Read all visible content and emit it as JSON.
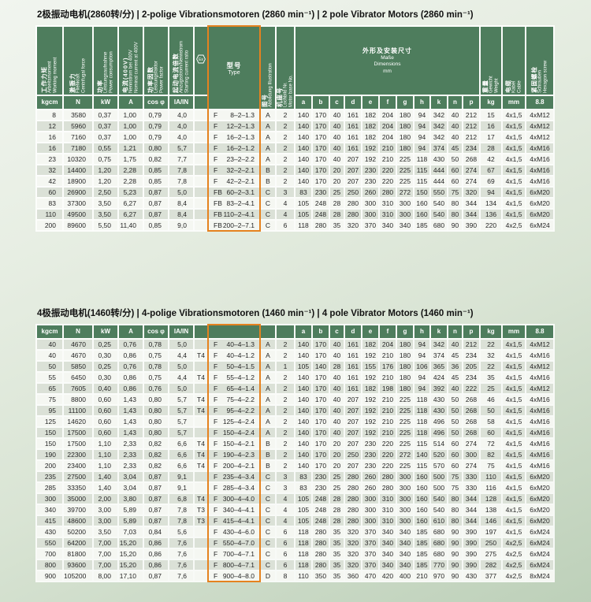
{
  "colors": {
    "header_green": "#4e7d5d",
    "highlight_orange": "#e5821f",
    "row_shaded": "#dbe1d7",
    "row_plain": "#f5f7f2"
  },
  "columns": {
    "working_moment": {
      "zh": "工作力矩",
      "de": "Arbeitsmoment",
      "en": "Working moment",
      "unit": "kgcm"
    },
    "centrifugal_force": {
      "zh": "激振力",
      "de": "Fliehkraft",
      "en": "Centrifugal force",
      "unit": "N"
    },
    "power": {
      "zh": "功率",
      "de": "Leistungsaufnahme",
      "en": "Power consumption",
      "unit": "kW"
    },
    "current": {
      "zh": "电流(400V)",
      "de": "Nennstrom bei 400V",
      "en": "Nominal current at 400V",
      "unit": "A"
    },
    "power_factor": {
      "zh": "功率因数",
      "de": "Leistungsfaktor",
      "en": "Power factor",
      "unit": "cos φ"
    },
    "starting_ratio": {
      "zh": "起动电流倍数",
      "de": "Anzugsstrom/Nennstrom",
      "en": "Starting current ratio",
      "unit": "IA/IN"
    },
    "temp_class": {
      "icon": "hexagon-ex-icon",
      "unit": ""
    },
    "type": {
      "zh": "型号",
      "en": "Type"
    },
    "illustration": {
      "zh": "图号",
      "de_en": "Abbildung  Illustration"
    },
    "base": {
      "zh": "机座号",
      "de": "Lochbild Nr.",
      "en": "Motor base No."
    },
    "dims": {
      "zh": "外形及安装尺寸",
      "de": "Maße",
      "en": "Dimensions",
      "unit": "mm",
      "letters": [
        "a",
        "b",
        "c",
        "d",
        "e",
        "f",
        "g",
        "h",
        "k",
        "n",
        "p"
      ]
    },
    "weight": {
      "zh": "重量",
      "de": "Gewicht",
      "en": "Weight",
      "unit": "kg"
    },
    "cable": {
      "zh": "电缆",
      "de": "Kabel",
      "en": "Cable",
      "unit": "mm"
    },
    "screws": {
      "zh": "紧固螺栓",
      "de": "Schrauben",
      "en": "Hexagon screw",
      "unit": "8.8"
    }
  },
  "tables": [
    {
      "title": "2极振动电机(2860转/分) | 2-polige Vibrationsmotoren (2860 min⁻¹) | 2 pole Vibrator Motors (2860 min⁻¹)",
      "rows": [
        [
          "8",
          "3580",
          "0,37",
          "1,00",
          "0,79",
          "4,0",
          "",
          "F",
          "8–2–1.3",
          "A",
          "2",
          "140",
          "170",
          "40",
          "161",
          "182",
          "204",
          "180",
          "94",
          "342",
          "40",
          "212",
          "15",
          "4x1,5",
          "4xM12"
        ],
        [
          "12",
          "5960",
          "0,37",
          "1,00",
          "0,79",
          "4,0",
          "",
          "F",
          "12–2–1.3",
          "A",
          "2",
          "140",
          "170",
          "40",
          "161",
          "182",
          "204",
          "180",
          "94",
          "342",
          "40",
          "212",
          "16",
          "4x1,5",
          "4xM12"
        ],
        [
          "16",
          "7160",
          "0,37",
          "1,00",
          "0,79",
          "4,0",
          "",
          "F",
          "16–2–1.3",
          "A",
          "2",
          "140",
          "170",
          "40",
          "161",
          "182",
          "204",
          "180",
          "94",
          "342",
          "40",
          "212",
          "17",
          "4x1,5",
          "4xM12"
        ],
        [
          "16",
          "7180",
          "0,55",
          "1,21",
          "0,80",
          "5,7",
          "",
          "F",
          "16–2–1.2",
          "A",
          "2",
          "140",
          "170",
          "40",
          "161",
          "192",
          "210",
          "180",
          "94",
          "374",
          "45",
          "234",
          "28",
          "4x1,5",
          "4xM16"
        ],
        [
          "23",
          "10320",
          "0,75",
          "1,75",
          "0,82",
          "7,7",
          "",
          "F",
          "23–2–2.2",
          "A",
          "2",
          "140",
          "170",
          "40",
          "207",
          "192",
          "210",
          "225",
          "118",
          "430",
          "50",
          "268",
          "42",
          "4x1,5",
          "4xM16"
        ],
        [
          "32",
          "14400",
          "1,20",
          "2,28",
          "0,85",
          "7,8",
          "",
          "F",
          "32–2–2.1",
          "B",
          "2",
          "140",
          "170",
          "20",
          "207",
          "230",
          "220",
          "225",
          "115",
          "444",
          "60",
          "274",
          "67",
          "4x1,5",
          "4xM16"
        ],
        [
          "42",
          "18900",
          "1,20",
          "2,28",
          "0,85",
          "7,8",
          "",
          "F",
          "42–2–2.1",
          "B",
          "2",
          "140",
          "170",
          "20",
          "207",
          "230",
          "220",
          "225",
          "115",
          "444",
          "60",
          "274",
          "69",
          "4x1,5",
          "4xM16"
        ],
        [
          "60",
          "26900",
          "2,50",
          "5,23",
          "0,87",
          "5,0",
          "",
          "FB",
          "60–2–3.1",
          "C",
          "3",
          "83",
          "230",
          "25",
          "250",
          "260",
          "280",
          "272",
          "150",
          "550",
          "75",
          "320",
          "94",
          "4x1,5",
          "6xM20"
        ],
        [
          "83",
          "37300",
          "3,50",
          "6,27",
          "0,87",
          "8,4",
          "",
          "FB",
          "83–2–4.1",
          "C",
          "4",
          "105",
          "248",
          "28",
          "280",
          "300",
          "310",
          "300",
          "160",
          "540",
          "80",
          "344",
          "134",
          "4x1,5",
          "6xM20"
        ],
        [
          "110",
          "49500",
          "3,50",
          "6,27",
          "0,87",
          "8,4",
          "",
          "FB",
          "110–2–4.1",
          "C",
          "4",
          "105",
          "248",
          "28",
          "280",
          "300",
          "310",
          "300",
          "160",
          "540",
          "80",
          "344",
          "136",
          "4x1,5",
          "6xM20"
        ],
        [
          "200",
          "89600",
          "5,50",
          "11,40",
          "0,85",
          "9,0",
          "",
          "FB",
          "200–2–7.1",
          "C",
          "6",
          "118",
          "280",
          "35",
          "320",
          "370",
          "340",
          "340",
          "185",
          "680",
          "90",
          "390",
          "220",
          "4x2,5",
          "6xM24"
        ]
      ]
    },
    {
      "title": "4极振动电机(1460转/分) | 4-polige Vibrationsmotoren (1460 min⁻¹) | 4 pole Vibrator Motors (1460 min⁻¹)",
      "rows": [
        [
          "40",
          "4670",
          "0,25",
          "0,76",
          "0,78",
          "5,0",
          "",
          "F",
          "40–4–1.3",
          "A",
          "2",
          "140",
          "170",
          "40",
          "161",
          "182",
          "204",
          "180",
          "94",
          "342",
          "40",
          "212",
          "22",
          "4x1,5",
          "4xM12"
        ],
        [
          "40",
          "4670",
          "0,30",
          "0,86",
          "0,75",
          "4,4",
          "T4",
          "F",
          "40–4–1.2",
          "A",
          "2",
          "140",
          "170",
          "40",
          "161",
          "192",
          "210",
          "180",
          "94",
          "374",
          "45",
          "234",
          "32",
          "4x1,5",
          "4xM16"
        ],
        [
          "50",
          "5850",
          "0,25",
          "0,76",
          "0,78",
          "5,0",
          "",
          "F",
          "50–4–1.5",
          "A",
          "1",
          "105",
          "140",
          "28",
          "161",
          "155",
          "176",
          "180",
          "106",
          "365",
          "36",
          "205",
          "22",
          "4x1,5",
          "4xM12"
        ],
        [
          "55",
          "6450",
          "0,30",
          "0,86",
          "0,75",
          "4,4",
          "T4",
          "F",
          "55–4–1.2",
          "A",
          "2",
          "140",
          "170",
          "40",
          "161",
          "192",
          "210",
          "180",
          "94",
          "424",
          "45",
          "234",
          "35",
          "4x1,5",
          "4xM16"
        ],
        [
          "65",
          "7605",
          "0,40",
          "0,86",
          "0,76",
          "5,0",
          "",
          "F",
          "65–4–1.4",
          "A",
          "2",
          "140",
          "170",
          "40",
          "161",
          "182",
          "198",
          "180",
          "94",
          "392",
          "40",
          "222",
          "25",
          "4x1,5",
          "4xM12"
        ],
        [
          "75",
          "8800",
          "0,60",
          "1,43",
          "0,80",
          "5,7",
          "T4",
          "F",
          "75–4–2.2",
          "A",
          "2",
          "140",
          "170",
          "40",
          "207",
          "192",
          "210",
          "225",
          "118",
          "430",
          "50",
          "268",
          "46",
          "4x1,5",
          "4xM16"
        ],
        [
          "95",
          "11100",
          "0,60",
          "1,43",
          "0,80",
          "5,7",
          "T4",
          "F",
          "95–4–2.2",
          "A",
          "2",
          "140",
          "170",
          "40",
          "207",
          "192",
          "210",
          "225",
          "118",
          "430",
          "50",
          "268",
          "50",
          "4x1,5",
          "4xM16"
        ],
        [
          "125",
          "14620",
          "0,60",
          "1,43",
          "0,80",
          "5,7",
          "",
          "F",
          "125–4–2.4",
          "A",
          "2",
          "140",
          "170",
          "40",
          "207",
          "192",
          "210",
          "225",
          "118",
          "496",
          "50",
          "268",
          "58",
          "4x1,5",
          "4xM16"
        ],
        [
          "150",
          "17500",
          "0,60",
          "1,43",
          "0,80",
          "5,7",
          "",
          "F",
          "150–4–2.4",
          "A",
          "2",
          "140",
          "170",
          "40",
          "207",
          "192",
          "210",
          "225",
          "118",
          "496",
          "50",
          "268",
          "60",
          "4x1,5",
          "4xM16"
        ],
        [
          "150",
          "17500",
          "1,10",
          "2,33",
          "0,82",
          "6,6",
          "T4",
          "F",
          "150–4–2.1",
          "B",
          "2",
          "140",
          "170",
          "20",
          "207",
          "230",
          "220",
          "225",
          "115",
          "514",
          "60",
          "274",
          "72",
          "4x1,5",
          "4xM16"
        ],
        [
          "190",
          "22300",
          "1,10",
          "2,33",
          "0,82",
          "6,6",
          "T4",
          "F",
          "190–4–2.3",
          "B",
          "2",
          "140",
          "170",
          "20",
          "250",
          "230",
          "220",
          "272",
          "140",
          "520",
          "60",
          "300",
          "82",
          "4x1,5",
          "4xM16"
        ],
        [
          "200",
          "23400",
          "1,10",
          "2,33",
          "0,82",
          "6,6",
          "T4",
          "F",
          "200–4–2.1",
          "B",
          "2",
          "140",
          "170",
          "20",
          "207",
          "230",
          "220",
          "225",
          "115",
          "570",
          "60",
          "274",
          "75",
          "4x1,5",
          "4xM16"
        ],
        [
          "235",
          "27500",
          "1,40",
          "3,04",
          "0,87",
          "9,1",
          "",
          "F",
          "235–4–3.4",
          "C",
          "3",
          "83",
          "230",
          "25",
          "280",
          "260",
          "280",
          "300",
          "160",
          "500",
          "75",
          "330",
          "110",
          "4x1,5",
          "6xM20"
        ],
        [
          "285",
          "33350",
          "1,40",
          "3,04",
          "0,87",
          "9,1",
          "",
          "F",
          "285–4–3.4",
          "C",
          "3",
          "83",
          "230",
          "25",
          "280",
          "260",
          "280",
          "300",
          "160",
          "500",
          "75",
          "330",
          "116",
          "4x1,5",
          "6xM20"
        ],
        [
          "300",
          "35000",
          "2,00",
          "3,80",
          "0,87",
          "6,8",
          "T4",
          "F",
          "300–4–4.0",
          "C",
          "4",
          "105",
          "248",
          "28",
          "280",
          "300",
          "310",
          "300",
          "160",
          "540",
          "80",
          "344",
          "128",
          "4x1,5",
          "6xM20"
        ],
        [
          "340",
          "39700",
          "3,00",
          "5,89",
          "0,87",
          "7,8",
          "T3",
          "F",
          "340–4–4.1",
          "C",
          "4",
          "105",
          "248",
          "28",
          "280",
          "300",
          "310",
          "300",
          "160",
          "540",
          "80",
          "344",
          "138",
          "4x1,5",
          "6xM20"
        ],
        [
          "415",
          "48600",
          "3,00",
          "5,89",
          "0,87",
          "7,8",
          "T3",
          "F",
          "415–4–4.1",
          "C",
          "4",
          "105",
          "248",
          "28",
          "280",
          "300",
          "310",
          "300",
          "160",
          "610",
          "80",
          "344",
          "146",
          "4x1,5",
          "6xM20"
        ],
        [
          "430",
          "50200",
          "3,50",
          "7,03",
          "0,84",
          "5,6",
          "",
          "F",
          "430–4–6.0",
          "C",
          "6",
          "118",
          "280",
          "35",
          "320",
          "370",
          "340",
          "340",
          "185",
          "680",
          "90",
          "390",
          "197",
          "4x1,5",
          "6xM24"
        ],
        [
          "550",
          "64200",
          "7,00",
          "15,20",
          "0,86",
          "7,6",
          "",
          "F",
          "550–4–7.0",
          "C",
          "6",
          "118",
          "280",
          "35",
          "320",
          "370",
          "340",
          "340",
          "185",
          "680",
          "90",
          "390",
          "250",
          "4x2,5",
          "6xM24"
        ],
        [
          "700",
          "81800",
          "7,00",
          "15,20",
          "0,86",
          "7,6",
          "",
          "F",
          "700–4–7.1",
          "C",
          "6",
          "118",
          "280",
          "35",
          "320",
          "370",
          "340",
          "340",
          "185",
          "680",
          "90",
          "390",
          "275",
          "4x2,5",
          "6xM24"
        ],
        [
          "800",
          "93600",
          "7,00",
          "15,20",
          "0,86",
          "7,6",
          "",
          "F",
          "800–4–7.1",
          "C",
          "6",
          "118",
          "280",
          "35",
          "320",
          "370",
          "340",
          "340",
          "185",
          "770",
          "90",
          "390",
          "282",
          "4x2,5",
          "6xM24"
        ],
        [
          "900",
          "105200",
          "8,00",
          "17,10",
          "0,87",
          "7,6",
          "",
          "F",
          "900–4–8.0",
          "D",
          "8",
          "110",
          "350",
          "35",
          "360",
          "470",
          "420",
          "400",
          "210",
          "970",
          "90",
          "430",
          "377",
          "4x2,5",
          "8xM24"
        ]
      ]
    }
  ]
}
